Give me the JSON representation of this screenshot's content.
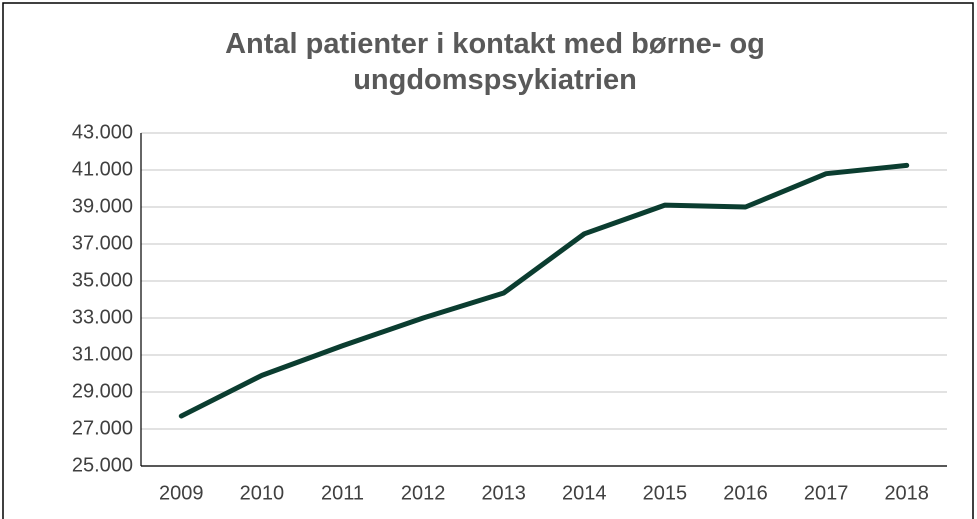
{
  "chart_data": {
    "type": "line",
    "title": "Antal patienter i kontakt med børne- og ungdomspsykiatrien",
    "categories": [
      "2009",
      "2010",
      "2011",
      "2012",
      "2013",
      "2014",
      "2015",
      "2016",
      "2017",
      "2018"
    ],
    "series": [
      {
        "color": "#0b3d30",
        "values": [
          27700,
          29900,
          31500,
          33000,
          34350,
          37550,
          39100,
          39000,
          40800,
          41250
        ]
      }
    ],
    "ylim": [
      25000,
      43000
    ],
    "yticks": [
      {
        "value": 25000,
        "label": "25.000"
      },
      {
        "value": 27000,
        "label": "27.000"
      },
      {
        "value": 29000,
        "label": "29.000"
      },
      {
        "value": 31000,
        "label": "31.000"
      },
      {
        "value": 33000,
        "label": "33.000"
      },
      {
        "value": 35000,
        "label": "35.000"
      },
      {
        "value": 37000,
        "label": "37.000"
      },
      {
        "value": 39000,
        "label": "39.000"
      },
      {
        "value": 41000,
        "label": "41.000"
      },
      {
        "value": 43000,
        "label": "43.000"
      }
    ],
    "grid": true
  }
}
